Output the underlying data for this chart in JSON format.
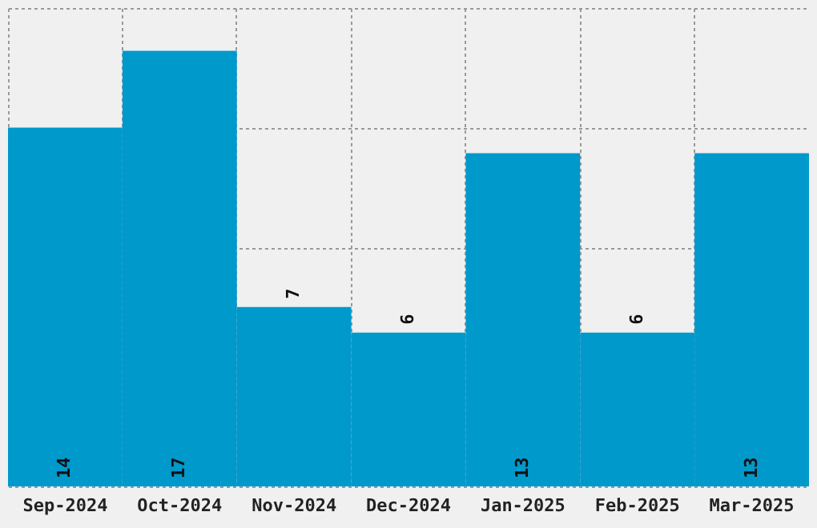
{
  "chart_data": {
    "type": "bar",
    "categories": [
      "Sep-2024",
      "Oct-2024",
      "Nov-2024",
      "Dec-2024",
      "Jan-2025",
      "Feb-2025",
      "Mar-2025"
    ],
    "values": [
      14,
      17,
      7,
      6,
      13,
      6,
      13
    ],
    "color": "#0099cc",
    "data_labels": true,
    "grid": true,
    "tick_labels": "x",
    "ylim": [
      0,
      18.67
    ],
    "yticks": [
      {
        "value": 0,
        "label": null
      },
      {
        "value": 4.67,
        "label": null
      },
      {
        "value": 9.33,
        "label": null
      },
      {
        "value": 14,
        "label": null
      },
      {
        "value": 18.67,
        "label": null
      }
    ]
  }
}
